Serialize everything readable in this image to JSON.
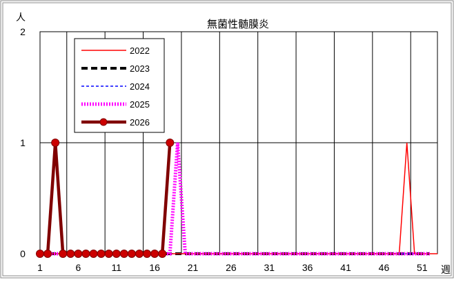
{
  "chart_data": {
    "type": "line",
    "title": "無菌性髄膜炎",
    "xlabel": "週",
    "ylabel": "人",
    "ylim": [
      0,
      2
    ],
    "y_ticks": [
      0,
      1,
      2
    ],
    "x_range": [
      1,
      53
    ],
    "x_tick_labels": [
      1,
      6,
      11,
      16,
      21,
      26,
      31,
      36,
      41,
      46,
      51
    ],
    "grid": true,
    "legend_position": "top-left",
    "series": [
      {
        "name": "2022",
        "color": "#ff0000",
        "style": "solid-thin",
        "x": [
          1,
          2,
          3,
          4,
          5,
          6,
          7,
          8,
          9,
          10,
          11,
          12,
          13,
          14,
          15,
          16,
          17,
          18,
          19,
          20,
          21,
          22,
          23,
          24,
          25,
          26,
          27,
          28,
          29,
          30,
          31,
          32,
          33,
          34,
          35,
          36,
          37,
          38,
          39,
          40,
          41,
          42,
          43,
          44,
          45,
          46,
          47,
          48,
          49,
          50,
          51,
          52,
          53
        ],
        "values": [
          0,
          0,
          0,
          0,
          0,
          0,
          0,
          0,
          0,
          0,
          0,
          0,
          0,
          0,
          0,
          0,
          0,
          0,
          0,
          0,
          0,
          0,
          0,
          0,
          0,
          0,
          0,
          0,
          0,
          0,
          0,
          0,
          0,
          0,
          0,
          0,
          0,
          0,
          0,
          0,
          0,
          0,
          0,
          0,
          0,
          0,
          0,
          0,
          1,
          0,
          0,
          0,
          0
        ]
      },
      {
        "name": "2023",
        "color": "#000000",
        "style": "dashed-thick",
        "x": [
          1,
          2,
          3,
          4,
          5,
          6,
          7,
          8,
          9,
          10,
          11,
          12,
          13,
          14,
          15,
          16,
          17,
          18,
          19,
          20,
          21,
          22,
          23,
          24,
          25,
          26,
          27,
          28,
          29,
          30,
          31,
          32,
          33,
          34,
          35,
          36,
          37,
          38,
          39,
          40,
          41,
          42,
          43,
          44,
          45,
          46,
          47,
          48,
          49,
          50,
          51,
          52
        ],
        "values": [
          0,
          0,
          0,
          0,
          0,
          0,
          0,
          0,
          0,
          0,
          0,
          0,
          0,
          0,
          0,
          0,
          0,
          0,
          0,
          0,
          0,
          0,
          0,
          0,
          0,
          0,
          0,
          0,
          0,
          0,
          0,
          0,
          0,
          0,
          0,
          0,
          0,
          0,
          0,
          0,
          0,
          0,
          0,
          0,
          0,
          0,
          0,
          0,
          0,
          0,
          0,
          0
        ]
      },
      {
        "name": "2024",
        "color": "#0000ff",
        "style": "dashed-thin",
        "x": [
          1,
          2,
          3,
          4,
          5,
          6,
          7,
          8,
          9,
          10,
          11,
          12,
          13,
          14,
          15,
          16,
          17,
          18,
          19,
          20,
          21,
          22,
          23,
          24,
          25,
          26,
          27,
          28,
          29,
          30,
          31,
          32,
          33,
          34,
          35,
          36,
          37,
          38,
          39,
          40,
          41,
          42,
          43,
          44,
          45,
          46,
          47,
          48,
          49,
          50,
          51,
          52
        ],
        "values": [
          0,
          0,
          0,
          0,
          0,
          0,
          0,
          0,
          0,
          0,
          0,
          0,
          0,
          0,
          0,
          0,
          0,
          0,
          0,
          0,
          0,
          0,
          0,
          0,
          0,
          0,
          0,
          0,
          0,
          0,
          0,
          0,
          0,
          0,
          0,
          0,
          0,
          0,
          0,
          0,
          0,
          0,
          0,
          0,
          0,
          0,
          0,
          0,
          0,
          0,
          0,
          0
        ]
      },
      {
        "name": "2025",
        "color": "#ff00ff",
        "style": "dotted-thick",
        "x": [
          1,
          2,
          3,
          4,
          5,
          6,
          7,
          8,
          9,
          10,
          11,
          12,
          13,
          14,
          15,
          16,
          17,
          18,
          19,
          20,
          21,
          22,
          23,
          24,
          25,
          26,
          27,
          28,
          29,
          30,
          31,
          32,
          33,
          34,
          35,
          36,
          37,
          38,
          39,
          40,
          41,
          42,
          43,
          44,
          45,
          46,
          47,
          48,
          49,
          50,
          51,
          52
        ],
        "values": [
          0,
          0,
          0,
          0,
          0,
          0,
          0,
          0,
          0,
          0,
          0,
          0,
          0,
          0,
          0,
          0,
          0,
          0,
          1,
          0,
          0,
          0,
          0,
          0,
          0,
          0,
          0,
          0,
          0,
          0,
          0,
          0,
          0,
          0,
          0,
          0,
          0,
          0,
          0,
          0,
          0,
          0,
          0,
          0,
          0,
          0,
          0,
          0,
          0,
          0,
          0,
          0
        ]
      },
      {
        "name": "2026",
        "color": "#800000",
        "style": "solid-marker",
        "x": [
          1,
          2,
          3,
          4,
          5,
          6,
          7,
          8,
          9,
          10,
          11,
          12,
          13,
          14,
          15,
          16,
          17,
          18
        ],
        "values": [
          0,
          0,
          1,
          0,
          0,
          0,
          0,
          0,
          0,
          0,
          0,
          0,
          0,
          0,
          0,
          0,
          0,
          1
        ]
      }
    ]
  }
}
